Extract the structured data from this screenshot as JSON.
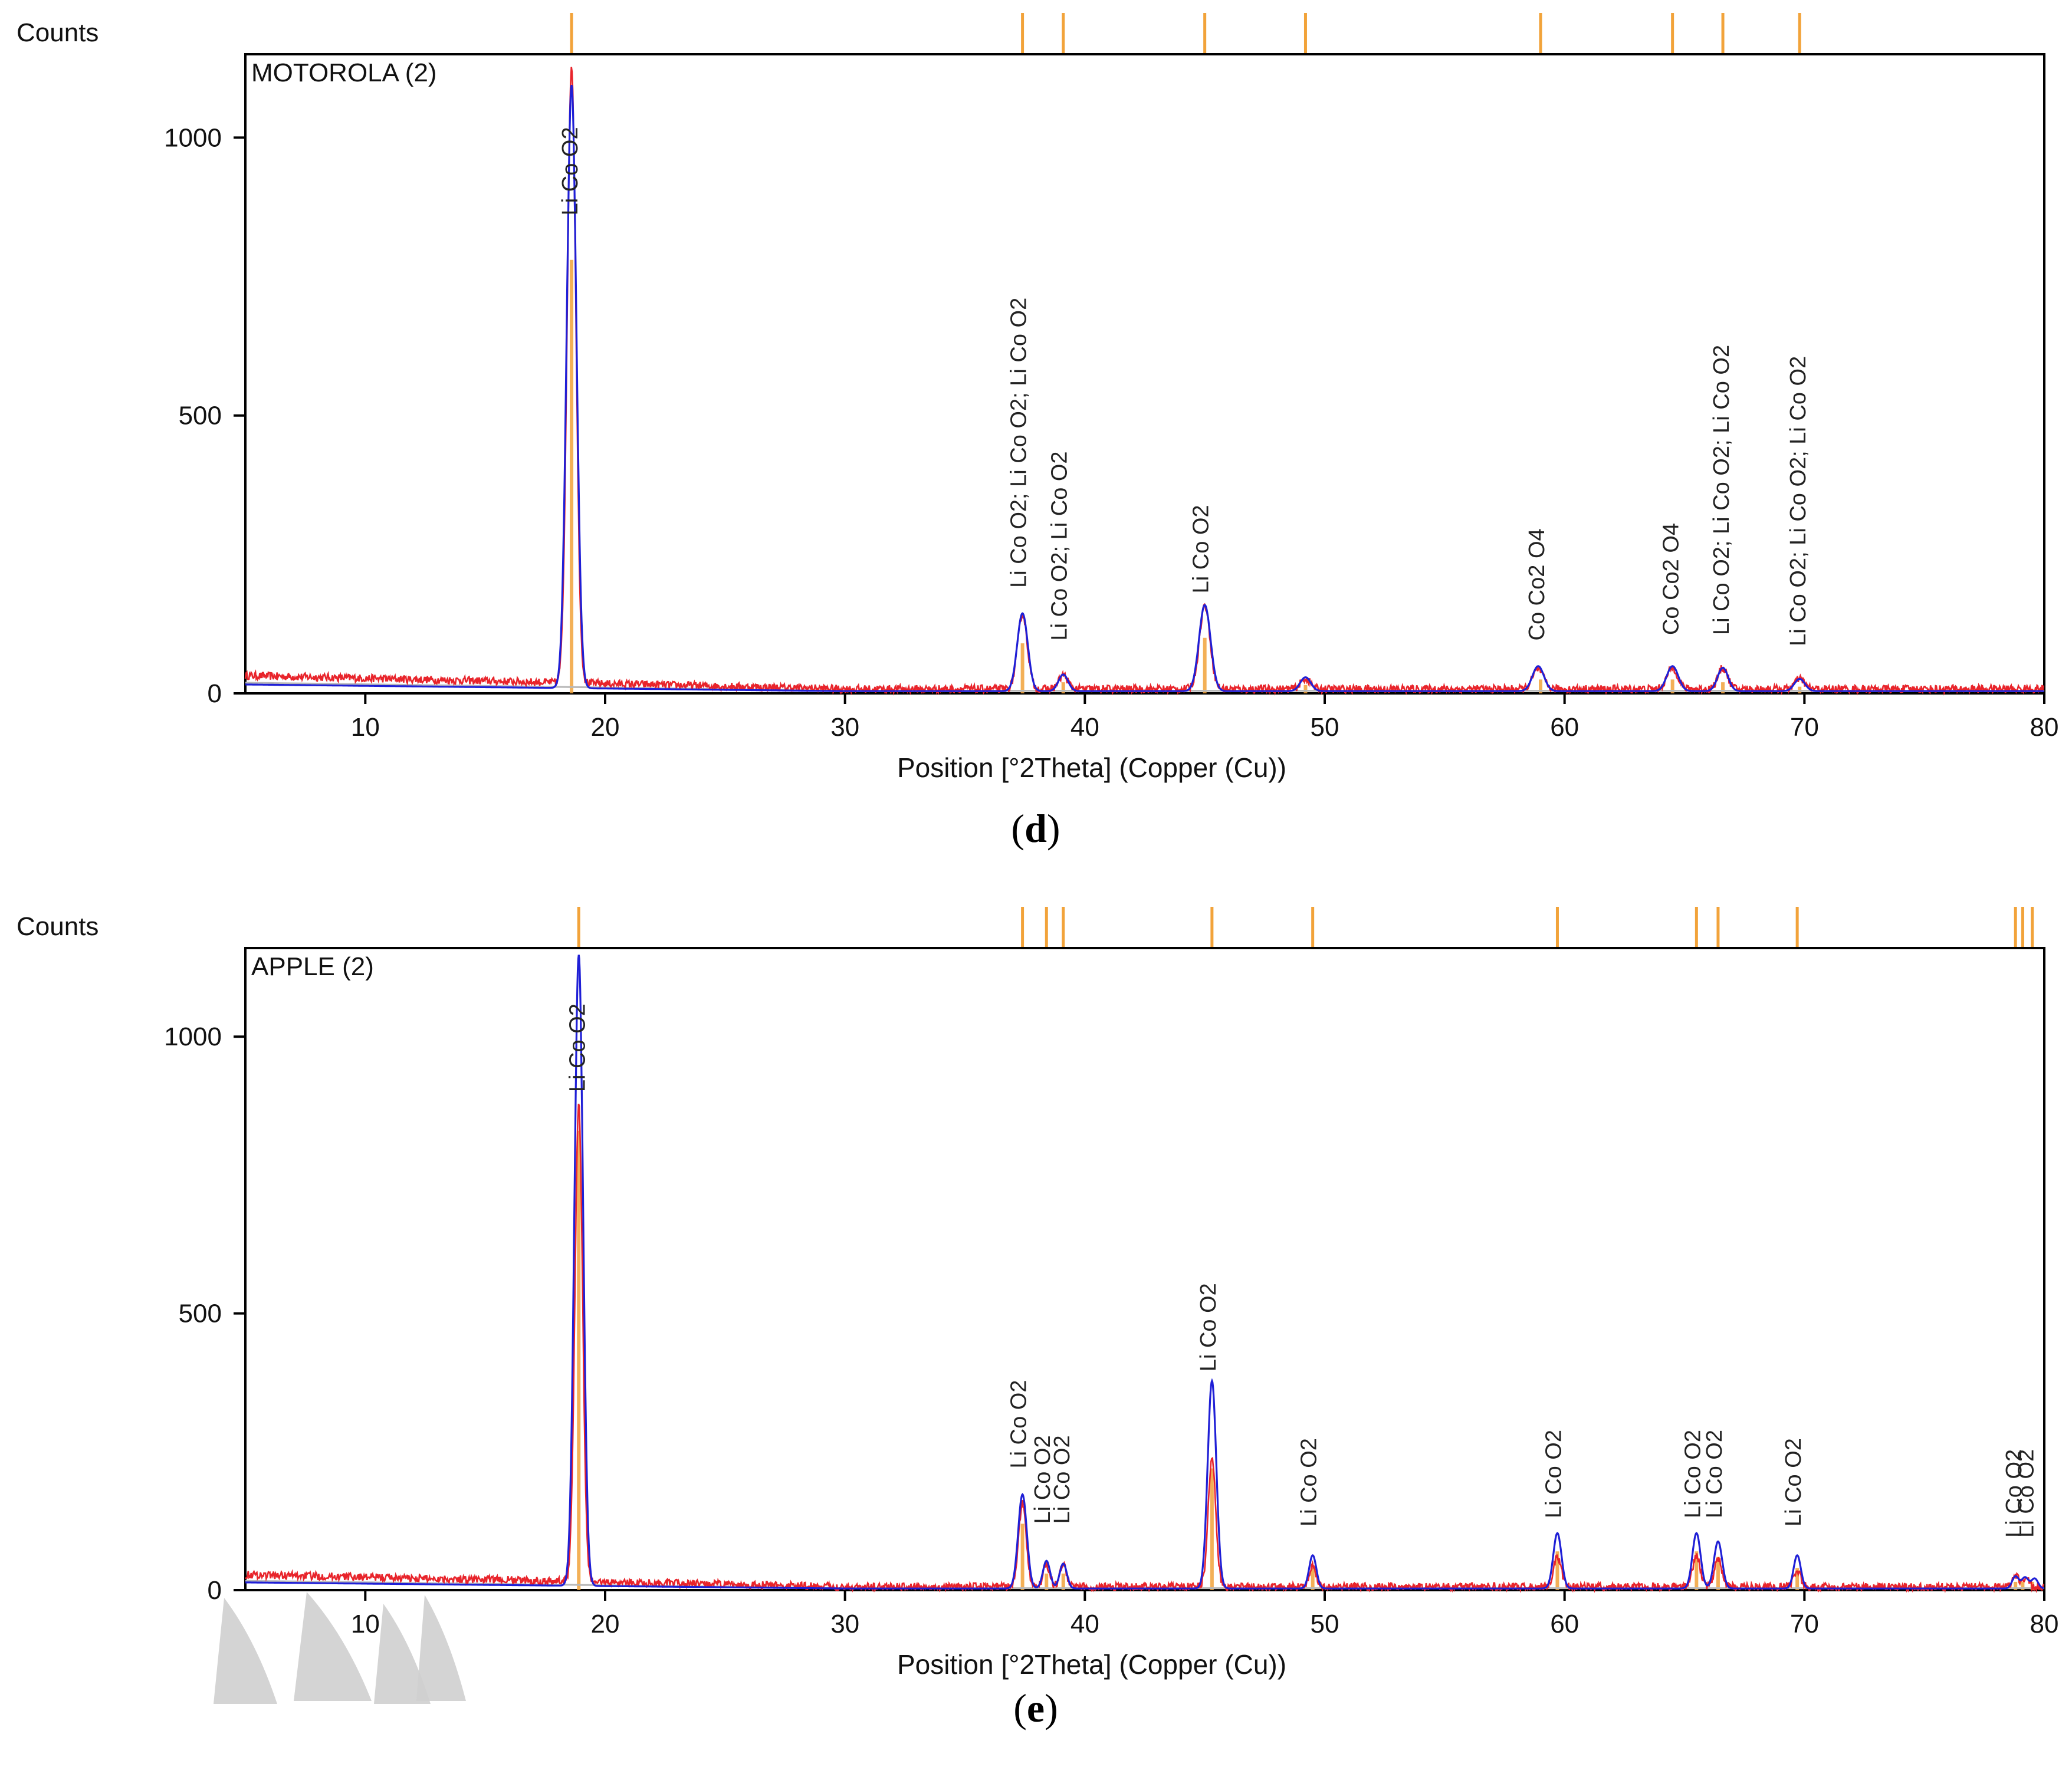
{
  "colors": {
    "calculated": "#1f1fd6",
    "observed": "#e8242b",
    "reference": "#f2a33a",
    "background_profile": "#b8b8b8",
    "axis": "#000000",
    "scan_artifact": "#cfcfcf"
  },
  "chart_data": [
    {
      "type": "line",
      "panel_caption": "d",
      "sample_label": "MOTOROLA (2)",
      "xlabel": "Position [°2Theta] (Copper (Cu))",
      "ylabel": "Counts",
      "xlim": [
        5,
        80
      ],
      "ylim": [
        0,
        1150
      ],
      "x_ticks": [
        10,
        20,
        30,
        40,
        50,
        60,
        70,
        80
      ],
      "y_ticks": [
        0,
        500,
        1000
      ],
      "grid": false,
      "baseline_start": 32,
      "baseline_end": 8,
      "observed_peaks": [
        {
          "x": 18.6,
          "y": 1110,
          "w": 0.18
        },
        {
          "x": 37.4,
          "y": 135,
          "w": 0.2
        },
        {
          "x": 39.1,
          "y": 25,
          "w": 0.18
        },
        {
          "x": 45.0,
          "y": 150,
          "w": 0.22
        },
        {
          "x": 49.2,
          "y": 18,
          "w": 0.2
        },
        {
          "x": 58.9,
          "y": 35,
          "w": 0.22
        },
        {
          "x": 64.5,
          "y": 38,
          "w": 0.22
        },
        {
          "x": 66.6,
          "y": 38,
          "w": 0.2
        },
        {
          "x": 69.8,
          "y": 18,
          "w": 0.2
        }
      ],
      "calculated_peaks": [
        {
          "x": 18.6,
          "y": 1085,
          "w": 0.2
        },
        {
          "x": 37.4,
          "y": 140,
          "w": 0.22
        },
        {
          "x": 39.1,
          "y": 30,
          "w": 0.2
        },
        {
          "x": 45.0,
          "y": 155,
          "w": 0.24
        },
        {
          "x": 49.2,
          "y": 25,
          "w": 0.22
        },
        {
          "x": 58.9,
          "y": 45,
          "w": 0.24
        },
        {
          "x": 64.5,
          "y": 45,
          "w": 0.24
        },
        {
          "x": 66.6,
          "y": 42,
          "w": 0.22
        },
        {
          "x": 69.8,
          "y": 22,
          "w": 0.22
        }
      ],
      "reference_lines": [
        18.6,
        37.4,
        39.1,
        45.0,
        49.2,
        59.0,
        64.5,
        66.6,
        69.8
      ],
      "reference_intensities": [
        780,
        90,
        20,
        100,
        15,
        25,
        25,
        20,
        12
      ],
      "annotations": [
        {
          "x": 18.6,
          "y": 860,
          "text": "Li Co O2"
        },
        {
          "x": 37.3,
          "y": 190,
          "text": "Li Co O2; Li Co O2; Li Co O2"
        },
        {
          "x": 39.0,
          "y": 95,
          "text": "Li Co O2; Li Co O2"
        },
        {
          "x": 44.9,
          "y": 180,
          "text": "Li Co O2"
        },
        {
          "x": 58.9,
          "y": 95,
          "text": "Co Co2 O4"
        },
        {
          "x": 64.5,
          "y": 105,
          "text": "Co Co2 O4"
        },
        {
          "x": 66.6,
          "y": 105,
          "text": "Li Co O2; Li Co O2; Li Co O2"
        },
        {
          "x": 69.8,
          "y": 85,
          "text": "Li Co O2; Li Co O2; Li Co O2"
        }
      ]
    },
    {
      "type": "line",
      "panel_caption": "e",
      "sample_label": "APPLE (2)",
      "xlabel": "Position [°2Theta] (Copper (Cu))",
      "ylabel": "Counts",
      "xlim": [
        5,
        80
      ],
      "ylim": [
        0,
        1160
      ],
      "x_ticks": [
        10,
        20,
        30,
        40,
        50,
        60,
        70,
        80
      ],
      "y_ticks": [
        0,
        500,
        1000
      ],
      "grid": false,
      "baseline_start": 28,
      "baseline_end": 6,
      "observed_peaks": [
        {
          "x": 18.9,
          "y": 860,
          "w": 0.16
        },
        {
          "x": 37.4,
          "y": 150,
          "w": 0.16
        },
        {
          "x": 38.4,
          "y": 40,
          "w": 0.14
        },
        {
          "x": 39.1,
          "y": 40,
          "w": 0.14
        },
        {
          "x": 45.3,
          "y": 230,
          "w": 0.16
        },
        {
          "x": 49.5,
          "y": 40,
          "w": 0.14
        },
        {
          "x": 59.7,
          "y": 55,
          "w": 0.16
        },
        {
          "x": 65.5,
          "y": 55,
          "w": 0.16
        },
        {
          "x": 66.4,
          "y": 50,
          "w": 0.16
        },
        {
          "x": 69.7,
          "y": 30,
          "w": 0.14
        },
        {
          "x": 78.8,
          "y": 18,
          "w": 0.14
        },
        {
          "x": 79.2,
          "y": 15,
          "w": 0.14
        }
      ],
      "calculated_peaks": [
        {
          "x": 18.9,
          "y": 1140,
          "w": 0.18
        },
        {
          "x": 37.4,
          "y": 170,
          "w": 0.18
        },
        {
          "x": 38.4,
          "y": 50,
          "w": 0.15
        },
        {
          "x": 39.1,
          "y": 45,
          "w": 0.15
        },
        {
          "x": 45.3,
          "y": 375,
          "w": 0.18
        },
        {
          "x": 49.5,
          "y": 60,
          "w": 0.15
        },
        {
          "x": 59.7,
          "y": 100,
          "w": 0.17
        },
        {
          "x": 65.5,
          "y": 100,
          "w": 0.17
        },
        {
          "x": 66.4,
          "y": 85,
          "w": 0.17
        },
        {
          "x": 69.7,
          "y": 60,
          "w": 0.15
        },
        {
          "x": 78.8,
          "y": 22,
          "w": 0.14
        },
        {
          "x": 79.2,
          "y": 20,
          "w": 0.14
        },
        {
          "x": 79.6,
          "y": 18,
          "w": 0.14
        }
      ],
      "reference_lines": [
        18.9,
        37.4,
        38.4,
        39.1,
        45.3,
        49.5,
        59.7,
        65.5,
        66.4,
        69.7,
        78.8,
        79.1,
        79.5
      ],
      "reference_intensities": [
        830,
        120,
        30,
        30,
        220,
        40,
        70,
        70,
        60,
        40,
        15,
        15,
        15
      ],
      "annotations": [
        {
          "x": 18.9,
          "y": 900,
          "text": "Li Co O2"
        },
        {
          "x": 37.3,
          "y": 220,
          "text": "Li Co O2"
        },
        {
          "x": 38.3,
          "y": 120,
          "text": "Li Co O2"
        },
        {
          "x": 39.1,
          "y": 120,
          "text": "Li Co O2"
        },
        {
          "x": 45.2,
          "y": 395,
          "text": "Li Co O2"
        },
        {
          "x": 49.4,
          "y": 115,
          "text": "Li Co O2"
        },
        {
          "x": 59.6,
          "y": 130,
          "text": "Li Co O2"
        },
        {
          "x": 65.4,
          "y": 130,
          "text": "Li Co O2"
        },
        {
          "x": 66.3,
          "y": 130,
          "text": "Li Co O2"
        },
        {
          "x": 69.6,
          "y": 115,
          "text": "Li Co O2"
        },
        {
          "x": 78.8,
          "y": 95,
          "text": "Li Co O2"
        },
        {
          "x": 79.3,
          "y": 95,
          "text": "Li Co O2"
        }
      ]
    }
  ]
}
